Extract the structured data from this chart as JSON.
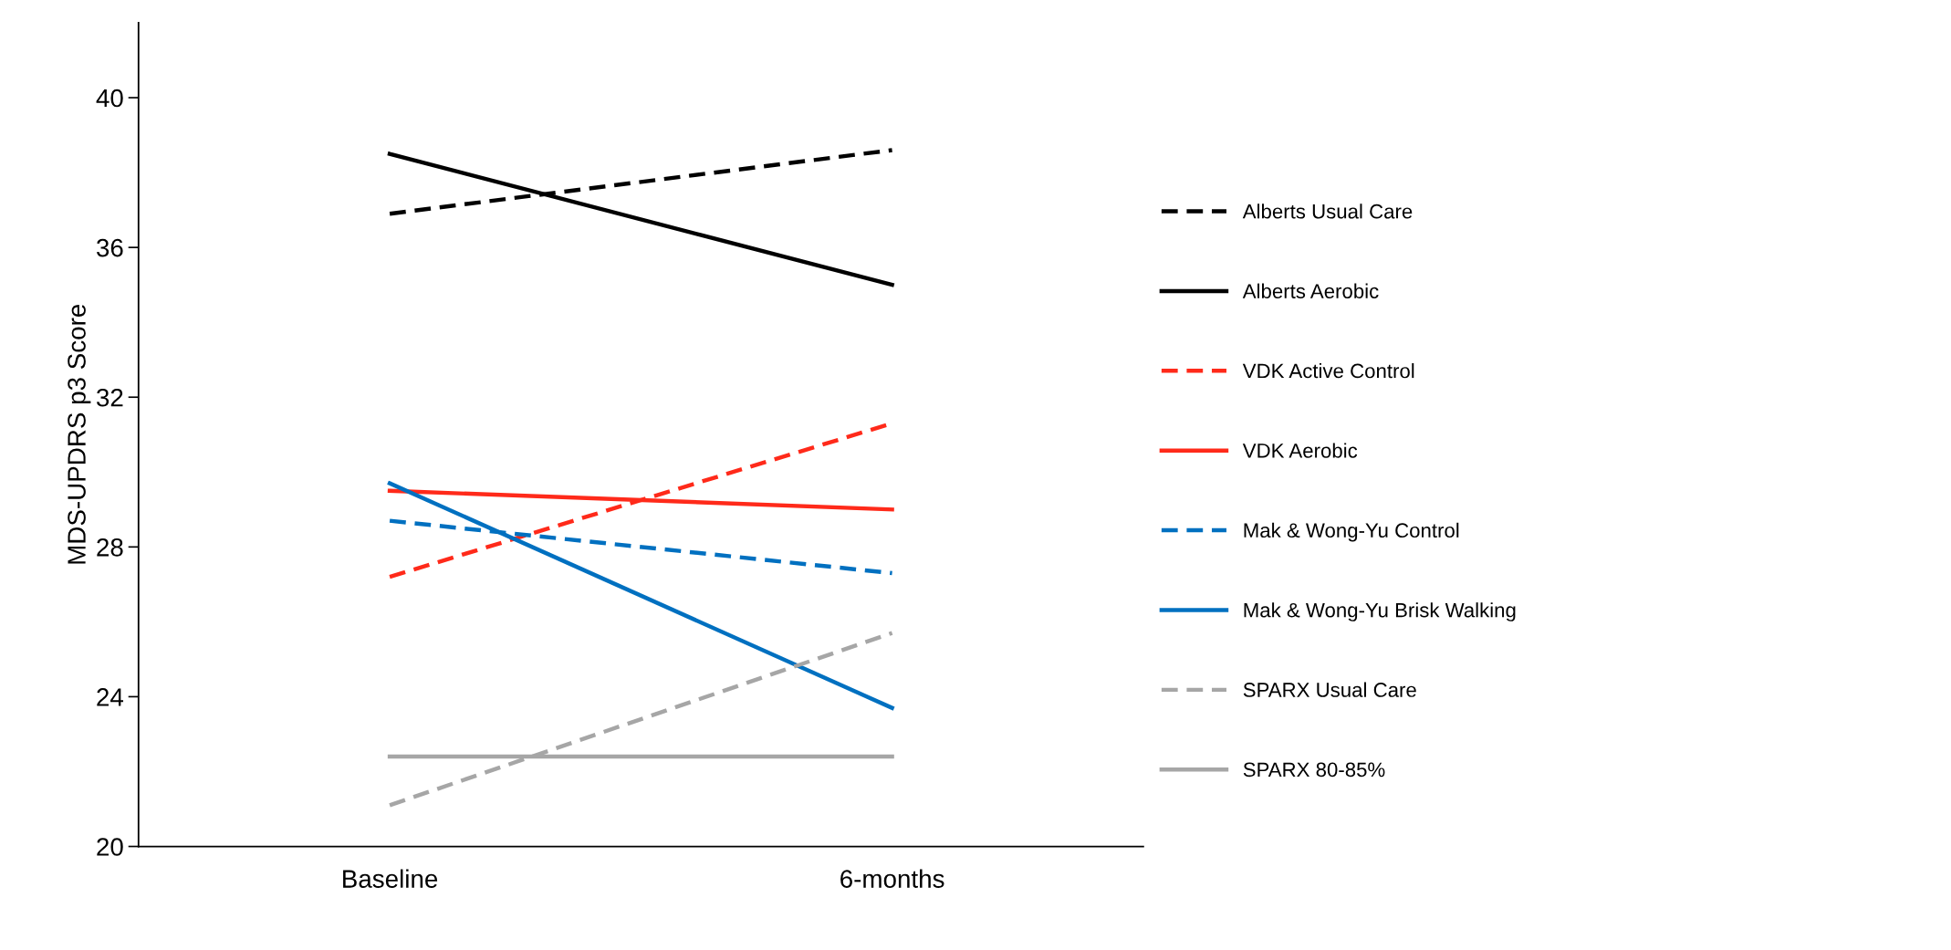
{
  "chart_data": {
    "type": "line",
    "ylabel": "MDS-UPDRS p3 Score",
    "categories": [
      "Baseline",
      "6-months"
    ],
    "ylim": [
      20,
      42
    ],
    "yticks": [
      20,
      24,
      28,
      32,
      36,
      40
    ],
    "grid": false,
    "legend": "right",
    "marker": "none",
    "series": [
      {
        "name": "Alberts Usual Care",
        "color": "#000000",
        "line_style": "dashed",
        "values": [
          36.9,
          38.6
        ]
      },
      {
        "name": "Alberts Aerobic",
        "color": "#000000",
        "line_style": "solid",
        "values": [
          38.5,
          35.0
        ]
      },
      {
        "name": "VDK Active Control",
        "color": "#ff2a1a",
        "line_style": "dashed",
        "values": [
          27.2,
          31.3
        ]
      },
      {
        "name": "VDK Aerobic",
        "color": "#ff2a1a",
        "line_style": "solid",
        "values": [
          29.5,
          29.0
        ]
      },
      {
        "name": "Mak & Wong-Yu Control",
        "color": "#0070c0",
        "line_style": "dashed",
        "values": [
          28.7,
          27.3
        ]
      },
      {
        "name": "Mak & Wong-Yu Brisk Walking",
        "color": "#0070c0",
        "line_style": "solid",
        "values": [
          29.7,
          23.7
        ]
      },
      {
        "name": "SPARX Usual Care",
        "color": "#a6a6a6",
        "line_style": "dashed",
        "values": [
          21.1,
          25.7
        ]
      },
      {
        "name": "SPARX 80-85%",
        "color": "#a6a6a6",
        "line_style": "solid",
        "values": [
          22.4,
          22.4
        ]
      }
    ]
  }
}
